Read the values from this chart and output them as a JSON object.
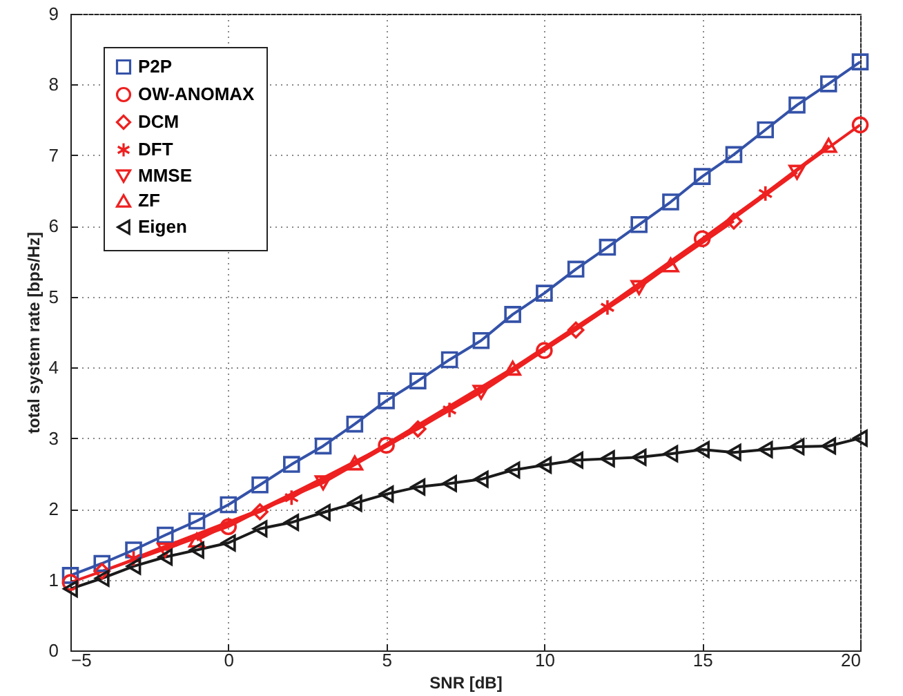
{
  "chart_data": {
    "type": "line",
    "xlabel": "SNR [dB]",
    "ylabel": "total system rate [bps/Hz]",
    "xlim": [
      -5,
      20
    ],
    "ylim": [
      0,
      9
    ],
    "xticks": [
      -5,
      0,
      5,
      10,
      15,
      20
    ],
    "yticks": [
      0,
      1,
      2,
      3,
      4,
      5,
      6,
      7,
      8,
      9
    ],
    "grid": true,
    "legend": "top left",
    "line_style": "solid",
    "series": [
      {
        "name": "P2P",
        "color": "#3452a8",
        "marker": "square",
        "x": [
          -5,
          -4,
          -3,
          -2,
          -1,
          0,
          1,
          2,
          3,
          4,
          5,
          6,
          7,
          8,
          9,
          10,
          11,
          12,
          13,
          14,
          15,
          16,
          17,
          18,
          19,
          20
        ],
        "values": [
          1.06,
          1.23,
          1.42,
          1.63,
          1.83,
          2.06,
          2.34,
          2.63,
          2.89,
          3.2,
          3.53,
          3.81,
          4.11,
          4.38,
          4.75,
          5.05,
          5.39,
          5.7,
          6.02,
          6.34,
          6.7,
          7.01,
          7.36,
          7.71,
          8.01,
          8.32
        ]
      },
      {
        "name": "OW-ANOMAX",
        "color": "#ee2020",
        "marker": "circle",
        "x": [
          -5,
          0,
          5,
          10,
          15,
          20
        ],
        "values": [
          0.96,
          1.75,
          2.9,
          4.24,
          5.82,
          7.43
        ]
      },
      {
        "name": "DCM",
        "color": "#ee2020",
        "marker": "diamond",
        "x": [
          -4,
          1,
          6,
          11,
          16
        ],
        "values": [
          1.12,
          1.96,
          3.13,
          4.53,
          6.07
        ]
      },
      {
        "name": "DFT",
        "color": "#ee2020",
        "marker": "cross",
        "x": [
          -3,
          2,
          7,
          12,
          17
        ],
        "values": [
          1.3,
          2.16,
          3.4,
          4.85,
          6.46
        ]
      },
      {
        "name": "MMSE",
        "color": "#ee2020",
        "marker": "triangle-down",
        "x": [
          -2,
          3,
          8,
          13,
          18
        ],
        "values": [
          1.42,
          2.37,
          3.65,
          5.13,
          6.76
        ]
      },
      {
        "name": "ZF",
        "color": "#ee2020",
        "marker": "triangle",
        "x": [
          -1,
          4,
          9,
          14,
          19
        ],
        "values": [
          1.56,
          2.65,
          3.99,
          5.45,
          7.14
        ]
      },
      {
        "name": "Eigen",
        "color": "#1a1a1a",
        "marker": "triangle-left",
        "x": [
          -5,
          -4,
          -3,
          -2,
          -1,
          0,
          1,
          2,
          3,
          4,
          5,
          6,
          7,
          8,
          9,
          10,
          11,
          12,
          13,
          14,
          15,
          16,
          17,
          18,
          19,
          20
        ],
        "values": [
          0.87,
          1.02,
          1.19,
          1.32,
          1.42,
          1.52,
          1.72,
          1.81,
          1.95,
          2.08,
          2.21,
          2.31,
          2.36,
          2.42,
          2.55,
          2.62,
          2.69,
          2.71,
          2.73,
          2.78,
          2.84,
          2.8,
          2.84,
          2.88,
          2.89,
          3.0
        ]
      }
    ]
  }
}
